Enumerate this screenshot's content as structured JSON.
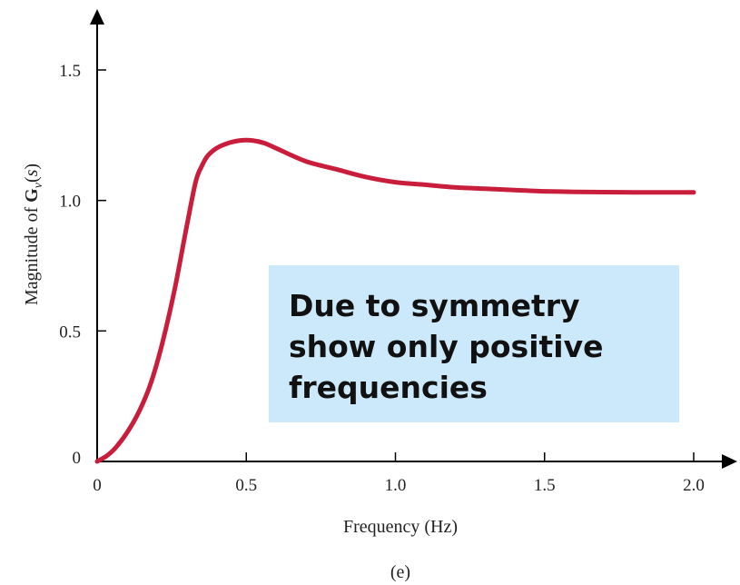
{
  "colors": {
    "curve": "#c81e3c",
    "axis": "#000000",
    "callout_bg": "#cce9fb"
  },
  "chart_data": {
    "type": "line",
    "title": "",
    "xlabel": "Frequency (Hz)",
    "ylabel_prefix": "Magnitude of ",
    "ylabel_symbol": "G",
    "ylabel_subscript": "v",
    "ylabel_arg": "s",
    "xlim": [
      0,
      2.0
    ],
    "ylim": [
      0,
      1.5
    ],
    "x_ticks": [
      {
        "value": 0,
        "label": "0"
      },
      {
        "value": 0.5,
        "label": "0.5"
      },
      {
        "value": 1.0,
        "label": "1.0"
      },
      {
        "value": 1.5,
        "label": "1.5"
      },
      {
        "value": 2.0,
        "label": "2.0"
      }
    ],
    "y_ticks": [
      {
        "value": 0,
        "label": "0"
      },
      {
        "value": 0.5,
        "label": "0.5"
      },
      {
        "value": 1.0,
        "label": "1.0"
      },
      {
        "value": 1.5,
        "label": "1.5"
      }
    ],
    "series": [
      {
        "x": [
          0,
          0.03,
          0.06,
          0.1,
          0.14,
          0.18,
          0.22,
          0.26,
          0.3,
          0.33,
          0.35,
          0.37,
          0.4,
          0.44,
          0.48,
          0.52,
          0.56,
          0.6,
          0.7,
          0.8,
          0.9,
          1.0,
          1.1,
          1.2,
          1.3,
          1.4,
          1.5,
          1.6,
          1.7,
          1.8,
          1.9,
          2.0
        ],
        "y": [
          0,
          0.02,
          0.05,
          0.11,
          0.19,
          0.3,
          0.46,
          0.66,
          0.9,
          1.07,
          1.13,
          1.17,
          1.2,
          1.22,
          1.23,
          1.23,
          1.22,
          1.2,
          1.15,
          1.12,
          1.09,
          1.07,
          1.06,
          1.05,
          1.045,
          1.04,
          1.035,
          1.033,
          1.032,
          1.031,
          1.031,
          1.031
        ]
      }
    ]
  },
  "callout": {
    "lines": [
      "Due to symmetry",
      "show only positive",
      "frequencies"
    ]
  },
  "caption": "(e)"
}
